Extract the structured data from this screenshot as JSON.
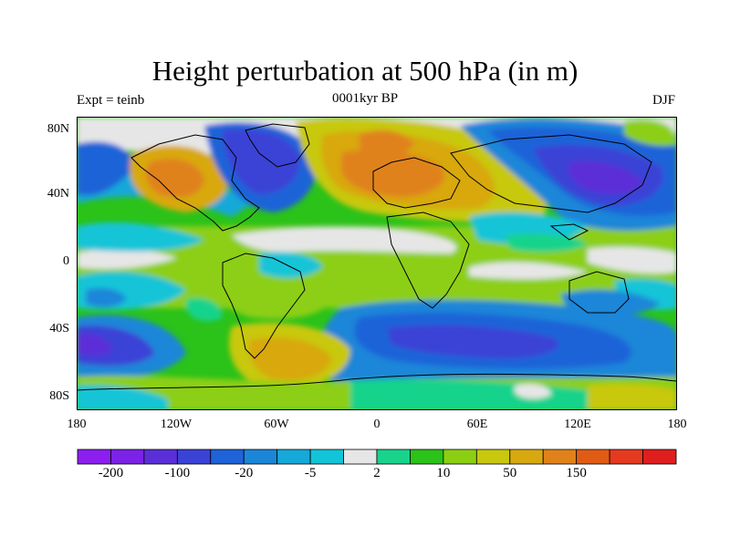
{
  "title": "Height perturbation at 500 hPa (in m)",
  "experiment_label": "Expt = teinb",
  "time_label": "0001kyr BP",
  "season_label": "DJF",
  "y_ticks": [
    "80N",
    "40N",
    "0",
    "40S",
    "80S"
  ],
  "x_ticks": [
    "180",
    "120W",
    "60W",
    "0",
    "60E",
    "120E",
    "180"
  ],
  "colorbar": {
    "colors": [
      "#8c1ff0",
      "#7a22e6",
      "#5b2fd8",
      "#3b42d6",
      "#1f63d8",
      "#1b86d8",
      "#16a8d8",
      "#12c4d8",
      "#e6e6e6",
      "#18d38c",
      "#2bc21a",
      "#8ccf12",
      "#c8c80e",
      "#d8a811",
      "#e0821a",
      "#e05c14",
      "#e53a1f",
      "#e01e1e"
    ],
    "labels": [
      "-200",
      "-100",
      "-20",
      "-5",
      "2",
      "10",
      "50",
      "150"
    ],
    "label_after_box": [
      1,
      3,
      5,
      7,
      9,
      11,
      13,
      15
    ]
  }
}
